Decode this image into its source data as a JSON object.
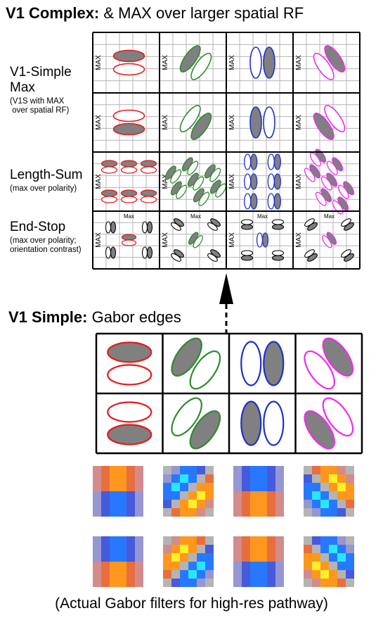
{
  "top_heading": {
    "bold": "V1 Complex:",
    "rest": " & MAX over larger spatial RF"
  },
  "rows": [
    {
      "title_line1": "V1-Simple",
      "title_line2": "Max",
      "sub_line1": "(V1S with MAX",
      "sub_line2": " over spatial RF)"
    },
    {
      "title_line1": "Length-Sum",
      "title_line2": "",
      "sub_line1": "(max over polarity)",
      "sub_line2": ""
    },
    {
      "title_line1": "End-Stop",
      "title_line2": "",
      "sub_line1": "(max over polarity;",
      "sub_line2": "orientation contrast)"
    }
  ],
  "cell_labels": {
    "max_upper": "MAX",
    "max_lower": "Max"
  },
  "middle_heading": {
    "bold": "V1 Simple:",
    "rest": " Gabor edges"
  },
  "caption": "(Actual Gabor filters for high-res pathway)",
  "colors": {
    "red": "#e31a1c",
    "green": "#2e8b2e",
    "blue": "#1f2fd0",
    "magenta": "#ee2aee",
    "fill": "#808080",
    "grid": "#b4b4b4"
  }
}
